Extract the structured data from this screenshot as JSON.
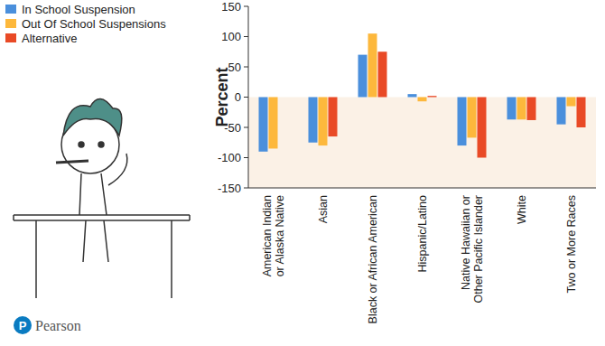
{
  "brand": "Pearson",
  "chart_data": {
    "type": "bar",
    "y_label": "Percent",
    "categories": [
      "American Indian or Alaska Native",
      "Asian",
      "Black or African American",
      "Hispanic/Latino",
      "Native Hawaiian or Other Pacific Islander",
      "White",
      "Two or More Races"
    ],
    "series": [
      {
        "name": "In School Suspension",
        "color": "#4a8fdc",
        "values": [
          -90,
          -75,
          70,
          5,
          -80,
          -37,
          -45
        ]
      },
      {
        "name": "Out Of School Suspensions",
        "color": "#fdb83c",
        "values": [
          -85,
          -80,
          105,
          -7,
          -67,
          -37,
          -15
        ]
      },
      {
        "name": "Alternative",
        "color": "#e94a26",
        "values": [
          null,
          -65,
          75,
          2,
          -100,
          -38,
          -50
        ]
      }
    ],
    "ylim": [
      -150,
      150
    ],
    "yticks": [
      -150,
      -100,
      -50,
      0,
      50,
      100,
      150
    ],
    "grid": false,
    "legend": "top-left"
  }
}
